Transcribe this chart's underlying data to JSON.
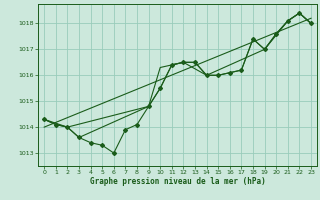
{
  "title": "Graphe pression niveau de la mer (hPa)",
  "bg_color": "#cce8dc",
  "grid_color": "#99ccbb",
  "line_color": "#1a5c1a",
  "x_min": -0.5,
  "x_max": 23.5,
  "y_min": 1012.5,
  "y_max": 1018.75,
  "yticks": [
    1013,
    1014,
    1015,
    1016,
    1017,
    1018
  ],
  "xticks": [
    0,
    1,
    2,
    3,
    4,
    5,
    6,
    7,
    8,
    9,
    10,
    11,
    12,
    13,
    14,
    15,
    16,
    17,
    18,
    19,
    20,
    21,
    22,
    23
  ],
  "series_main_x": [
    0,
    1,
    2,
    3,
    4,
    5,
    6,
    7,
    8,
    9,
    10,
    11,
    12,
    13,
    14,
    15,
    16,
    17,
    18,
    19,
    20,
    21,
    22,
    23
  ],
  "series_main_y": [
    1014.3,
    1014.1,
    1014.0,
    1013.6,
    1013.4,
    1013.3,
    1013.0,
    1013.9,
    1014.1,
    1014.8,
    1015.5,
    1016.4,
    1016.5,
    1016.5,
    1016.0,
    1016.0,
    1016.1,
    1016.2,
    1017.4,
    1017.0,
    1017.6,
    1018.1,
    1018.4,
    1018.0
  ],
  "series_env1_x": [
    0,
    2,
    3,
    9,
    10,
    11,
    12,
    13,
    14,
    15,
    16,
    17,
    18,
    19,
    20,
    21,
    22,
    23
  ],
  "series_env1_y": [
    1014.3,
    1014.0,
    1013.6,
    1014.8,
    1015.5,
    1016.4,
    1016.5,
    1016.5,
    1016.0,
    1016.0,
    1016.1,
    1016.2,
    1017.4,
    1017.0,
    1017.6,
    1018.1,
    1018.4,
    1018.0
  ],
  "series_env2_x": [
    0,
    1,
    2,
    9,
    10,
    12,
    14,
    17,
    19,
    21,
    22,
    23
  ],
  "series_env2_y": [
    1014.3,
    1014.1,
    1014.0,
    1014.8,
    1016.3,
    1016.5,
    1016.0,
    1016.6,
    1017.0,
    1018.1,
    1018.4,
    1018.0
  ],
  "trend_x": [
    0,
    23
  ],
  "trend_y": [
    1014.0,
    1018.2
  ]
}
